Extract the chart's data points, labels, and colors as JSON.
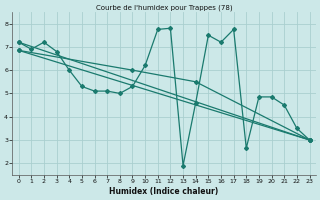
{
  "title": "Courbe de l'humidex pour Trappes (78)",
  "xlabel": "Humidex (Indice chaleur)",
  "xlim": [
    -0.5,
    23.5
  ],
  "ylim": [
    1.5,
    8.5
  ],
  "xticks": [
    0,
    1,
    2,
    3,
    4,
    5,
    6,
    7,
    8,
    9,
    10,
    11,
    12,
    13,
    14,
    15,
    16,
    17,
    18,
    19,
    20,
    21,
    22,
    23
  ],
  "yticks": [
    2,
    3,
    4,
    5,
    6,
    7,
    8
  ],
  "background_color": "#cce8e8",
  "grid_color": "#aacfcf",
  "line_color": "#1a7a6e",
  "lines": [
    {
      "x": [
        0,
        1,
        2,
        3,
        4,
        5,
        6,
        7,
        8,
        9,
        10,
        11,
        12,
        13,
        14,
        15,
        16,
        17,
        18,
        19,
        20,
        21,
        22,
        23
      ],
      "y": [
        7.2,
        6.9,
        7.2,
        6.8,
        6.0,
        5.3,
        5.1,
        5.1,
        5.0,
        5.3,
        6.2,
        7.75,
        7.8,
        1.9,
        4.6,
        7.5,
        7.2,
        7.75,
        2.65,
        4.85,
        4.85,
        4.5,
        3.5,
        3.0
      ]
    },
    {
      "x": [
        0,
        23
      ],
      "y": [
        7.2,
        3.0
      ]
    },
    {
      "x": [
        0,
        23
      ],
      "y": [
        6.85,
        3.0
      ]
    },
    {
      "x": [
        0,
        9,
        14,
        23
      ],
      "y": [
        6.85,
        6.0,
        5.5,
        3.0
      ]
    }
  ]
}
